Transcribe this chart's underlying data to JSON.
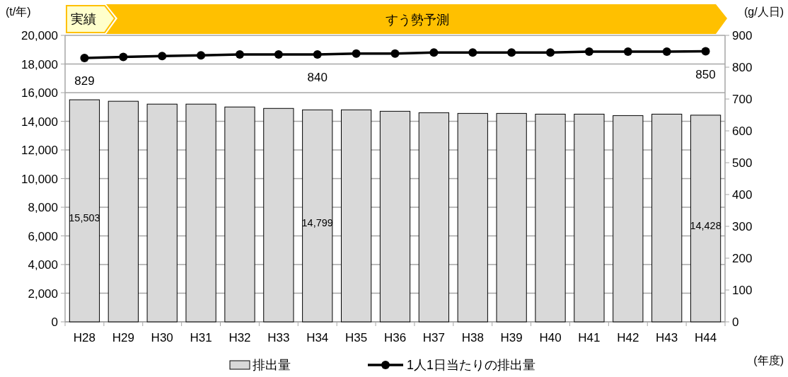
{
  "chart_data": {
    "type": "bar",
    "ylabel": "(t/年)",
    "y2label": "(g/人日)",
    "xlabel": "(年度)",
    "annotations": [
      "実績",
      "すう勢予測"
    ],
    "categories": [
      "H28",
      "H29",
      "H30",
      "H31",
      "H32",
      "H33",
      "H34",
      "H35",
      "H36",
      "H37",
      "H38",
      "H39",
      "H40",
      "H41",
      "H42",
      "H43",
      "H44"
    ],
    "series": [
      {
        "name": "排出量",
        "color": "#d9d9d9",
        "values": [
          15503,
          15400,
          15200,
          15200,
          15000,
          14900,
          14799,
          14800,
          14700,
          14600,
          14550,
          14550,
          14500,
          14500,
          14400,
          14500,
          14428
        ],
        "value_labels": [
          "15,503",
          null,
          null,
          null,
          null,
          null,
          "14,799",
          null,
          null,
          null,
          null,
          null,
          null,
          null,
          null,
          null,
          "14,428"
        ]
      },
      {
        "name": "1人1日当たりの排出量",
        "type": "line",
        "axis": "y2",
        "color": "#000000",
        "marker": "circle",
        "values": [
          829,
          832,
          835,
          837,
          840,
          840,
          840,
          843,
          843,
          846,
          846,
          846,
          846,
          849,
          849,
          849,
          850
        ],
        "value_labels": [
          "829",
          null,
          null,
          null,
          null,
          null,
          "840",
          null,
          null,
          null,
          null,
          null,
          null,
          null,
          null,
          null,
          "850"
        ]
      }
    ],
    "ylim": [
      0,
      20000
    ],
    "yticks": [
      {
        "value": 0,
        "label": "0"
      },
      {
        "value": 2000,
        "label": "2,000"
      },
      {
        "value": 4000,
        "label": "4,000"
      },
      {
        "value": 6000,
        "label": "6,000"
      },
      {
        "value": 8000,
        "label": "8,000"
      },
      {
        "value": 10000,
        "label": "10,000"
      },
      {
        "value": 12000,
        "label": "12,000"
      },
      {
        "value": 14000,
        "label": "14,000"
      },
      {
        "value": 16000,
        "label": "16,000"
      },
      {
        "value": 18000,
        "label": "18,000"
      },
      {
        "value": 20000,
        "label": "20,000"
      }
    ],
    "y2lim": [
      0,
      900
    ],
    "y2ticks": [
      0,
      100,
      200,
      300,
      400,
      500,
      600,
      700,
      800,
      900
    ],
    "grid": "y",
    "legend": "bottom"
  }
}
